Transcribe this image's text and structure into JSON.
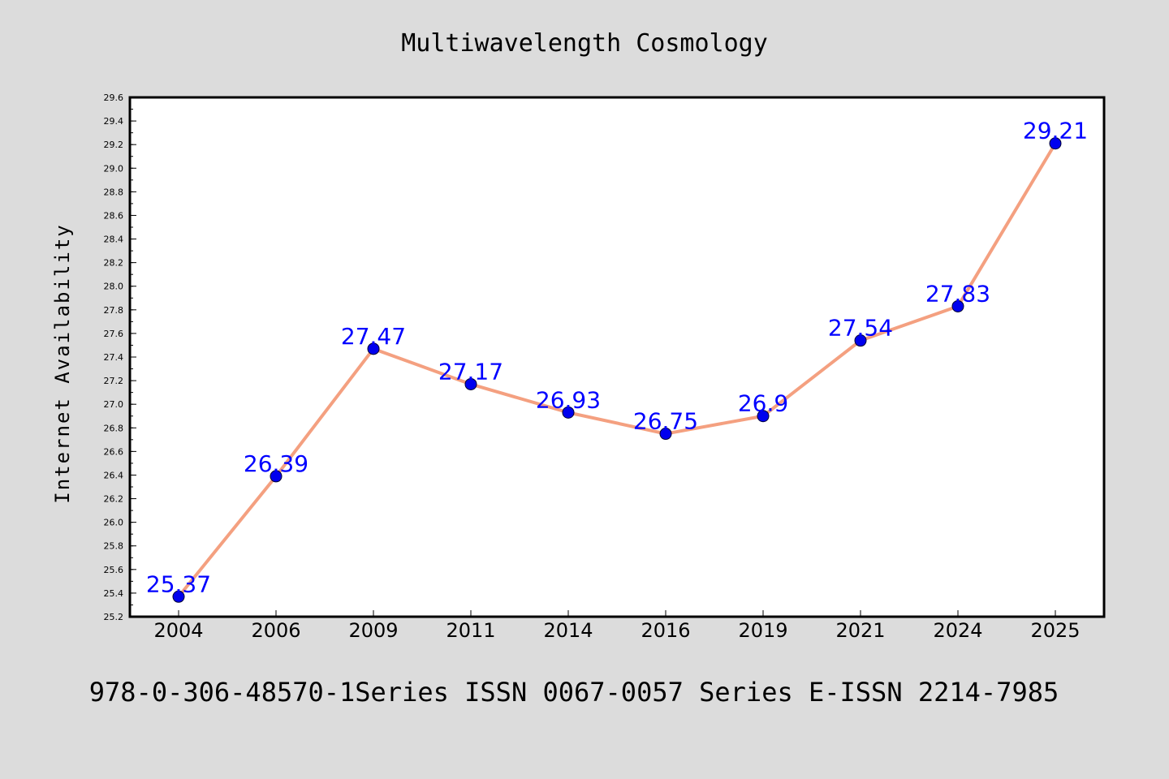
{
  "chart_data": {
    "type": "line",
    "title": "Multiwavelength Cosmology",
    "xlabel": "",
    "ylabel": "Internet Availability",
    "categories": [
      "2004",
      "2006",
      "2009",
      "2011",
      "2014",
      "2016",
      "2019",
      "2021",
      "2024",
      "2025"
    ],
    "series": [
      {
        "values": [
          25.37,
          26.39,
          27.47,
          27.17,
          26.93,
          26.75,
          26.9,
          27.54,
          27.83,
          29.21
        ],
        "data_labels": [
          "25.37",
          "26.39",
          "27.47",
          "27.17",
          "26.93",
          "26.75",
          "26.9",
          "27.54",
          "27.83",
          "29.21"
        ],
        "line_color": "#f4a080",
        "marker_color": "#0000ee",
        "label_color": "#0000ff"
      }
    ],
    "ylim": [
      25.2,
      29.6
    ],
    "y_major_step": 0.2,
    "y_minor_step": 0.1,
    "y_tick_decimals": 1,
    "grid": false,
    "background_color": "#dcdcdc",
    "plot_background_color": "#ffffff"
  },
  "footer": {
    "text": "978-0-306-48570-1Series ISSN 0067-0057 Series E-ISSN 2214-7985"
  }
}
